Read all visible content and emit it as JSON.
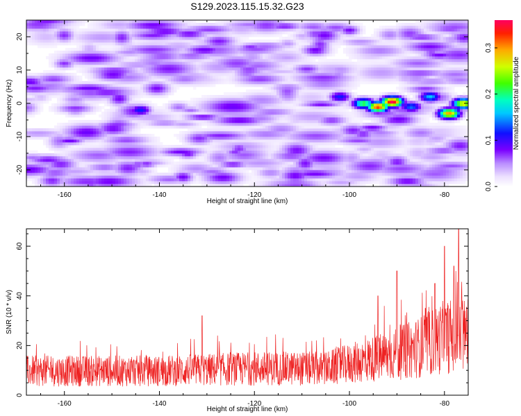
{
  "title": "S129.2023.115.15.32.G23",
  "chart_data": [
    {
      "type": "heatmap",
      "xlabel": "Height of straight line (km)",
      "ylabel": "Frequency (Hz)",
      "xlim": [
        -168,
        -75
      ],
      "ylim": [
        -25,
        25
      ],
      "xticks": [
        -160,
        -140,
        -120,
        -100,
        -80
      ],
      "yticks": [
        -20,
        -10,
        0,
        10,
        20
      ],
      "colorbar": {
        "label": "Normalized spectral amplitude",
        "range": [
          0,
          0.36
        ],
        "ticks": [
          0.0,
          0.1,
          0.2,
          0.3
        ]
      },
      "hotspots": [
        {
          "x": -91,
          "y": 0.5,
          "amp": 0.36
        },
        {
          "x": -94,
          "y": -1,
          "amp": 0.33
        },
        {
          "x": -79,
          "y": -3,
          "amp": 0.3
        },
        {
          "x": -76,
          "y": 0,
          "amp": 0.28
        },
        {
          "x": -97,
          "y": 0,
          "amp": 0.22
        },
        {
          "x": -83,
          "y": 2,
          "amp": 0.16
        },
        {
          "x": -87,
          "y": -1,
          "amp": 0.14
        },
        {
          "x": -102,
          "y": 2,
          "amp": 0.12
        },
        {
          "x": -144,
          "y": -2,
          "amp": 0.12
        },
        {
          "x": -100,
          "y": 22,
          "amp": 0.08
        },
        {
          "x": -134,
          "y": -15,
          "amp": 0.08
        },
        {
          "x": -160,
          "y": 12,
          "amp": 0.07
        }
      ]
    },
    {
      "type": "line",
      "xlabel": "Height of straight line (km)",
      "ylabel": "SNR (10 * v/v)",
      "xlim": [
        -168,
        -75
      ],
      "ylim": [
        0,
        67
      ],
      "xticks": [
        -160,
        -140,
        -120,
        -100,
        -80
      ],
      "yticks": [
        0,
        20,
        40,
        60
      ],
      "series_color": "#ee2222",
      "trend": [
        {
          "x": -168,
          "y": 10
        },
        {
          "x": -140,
          "y": 10
        },
        {
          "x": -120,
          "y": 11
        },
        {
          "x": -105,
          "y": 11
        },
        {
          "x": -100,
          "y": 13
        },
        {
          "x": -90,
          "y": 17
        },
        {
          "x": -85,
          "y": 20
        },
        {
          "x": -80,
          "y": 24
        },
        {
          "x": -75,
          "y": 25
        }
      ],
      "peaks": [
        {
          "x": -77,
          "y": 67
        },
        {
          "x": -80,
          "y": 60
        },
        {
          "x": -78,
          "y": 52
        },
        {
          "x": -90,
          "y": 50
        },
        {
          "x": -82,
          "y": 45
        },
        {
          "x": -94,
          "y": 40
        },
        {
          "x": -131,
          "y": 32
        },
        {
          "x": -84,
          "y": 35
        }
      ]
    }
  ]
}
